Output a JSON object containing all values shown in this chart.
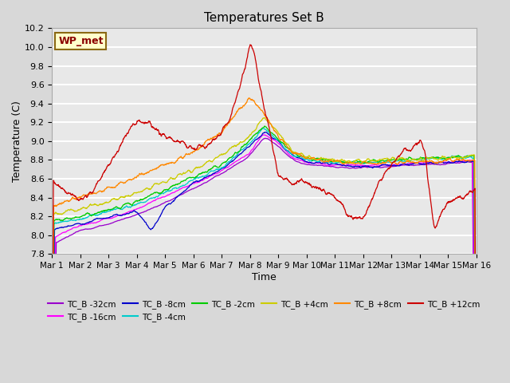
{
  "title": "Temperatures Set B",
  "xlabel": "Time",
  "ylabel": "Temperature (C)",
  "ylim": [
    7.8,
    10.2
  ],
  "xlim": [
    0,
    15
  ],
  "x_ticks": [
    0,
    1,
    2,
    3,
    4,
    5,
    6,
    7,
    8,
    9,
    10,
    11,
    12,
    13,
    14,
    15
  ],
  "x_tick_labels": [
    "Mar 1",
    "Mar 2",
    "Mar 3",
    "Mar 4",
    "Mar 5",
    "Mar 6",
    "Mar 7",
    "Mar 8",
    "Mar 9",
    "Mar 10",
    "Mar 11",
    "Mar 12",
    "Mar 13",
    "Mar 14",
    "Mar 15",
    "Mar 16"
  ],
  "y_ticks": [
    7.8,
    8.0,
    8.2,
    8.4,
    8.6,
    8.8,
    9.0,
    9.2,
    9.4,
    9.6,
    9.8,
    10.0,
    10.2
  ],
  "wp_met_label": "WP_met",
  "background_color": "#d8d8d8",
  "plot_bg_color": "#e8e8e8",
  "grid_color": "#ffffff",
  "series": [
    {
      "label": "TC_B -32cm",
      "color": "#9900cc"
    },
    {
      "label": "TC_B -16cm",
      "color": "#ff00ff"
    },
    {
      "label": "TC_B -8cm",
      "color": "#0000cc"
    },
    {
      "label": "TC_B -4cm",
      "color": "#00cccc"
    },
    {
      "label": "TC_B -2cm",
      "color": "#00cc00"
    },
    {
      "label": "TC_B +4cm",
      "color": "#cccc00"
    },
    {
      "label": "TC_B +8cm",
      "color": "#ff8800"
    },
    {
      "label": "TC_B +12cm",
      "color": "#cc0000"
    }
  ]
}
